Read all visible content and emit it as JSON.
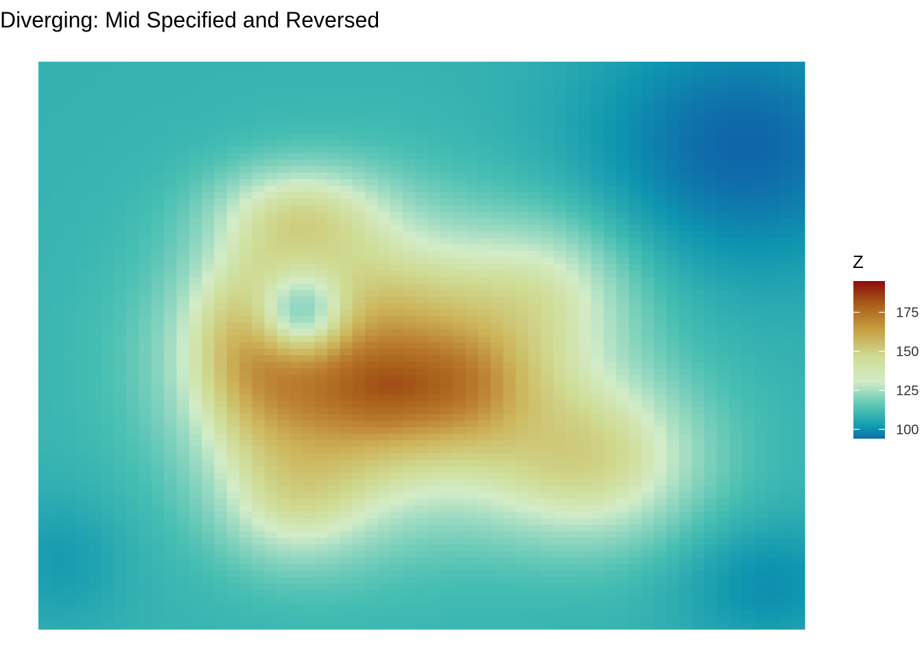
{
  "chart_data": {
    "type": "heatmap",
    "title": "Diverging: Mid Specified and Reversed",
    "xlabel": "",
    "ylabel": "",
    "grid": "off",
    "legend_position": "right",
    "legend": {
      "title": "Z",
      "ticks": [
        100,
        125,
        150,
        175
      ],
      "tick_labels": [
        "100",
        "125",
        "150",
        "175"
      ],
      "range": [
        94,
        195
      ],
      "midpoint": 140
    },
    "colors": {
      "low": "#0f5ea8",
      "mid_low": "#0f9db0",
      "mid_low2": "#5ecab3",
      "mid": "#d3ecc8",
      "mid_high": "#cfdc95",
      "high_mid": "#c69b3b",
      "high": "#a85f1a",
      "top": "#8b0c0c"
    },
    "grid_size": {
      "cols": 61,
      "rows": 87
    },
    "value_field": {
      "background": 118,
      "bumps": [
        {
          "x": 0.4,
          "y": 0.55,
          "amp": 40,
          "sx": 0.14,
          "sy": 0.18
        },
        {
          "x": 0.29,
          "y": 0.49,
          "amp": 22,
          "sx": 0.06,
          "sy": 0.11
        },
        {
          "x": 0.34,
          "y": 0.26,
          "amp": 18,
          "sx": 0.08,
          "sy": 0.06
        },
        {
          "x": 0.45,
          "y": 0.58,
          "amp": 14,
          "sx": 0.06,
          "sy": 0.06
        },
        {
          "x": 0.56,
          "y": 0.57,
          "amp": 18,
          "sx": 0.06,
          "sy": 0.07
        },
        {
          "x": 0.72,
          "y": 0.7,
          "amp": 30,
          "sx": 0.11,
          "sy": 0.11
        },
        {
          "x": 0.67,
          "y": 0.4,
          "amp": 18,
          "sx": 0.09,
          "sy": 0.1
        },
        {
          "x": 0.47,
          "y": 0.5,
          "amp": 12,
          "sx": 0.18,
          "sy": 0.14
        },
        {
          "x": 0.33,
          "y": 0.78,
          "amp": 14,
          "sx": 0.07,
          "sy": 0.08
        },
        {
          "x": 0.34,
          "y": 0.45,
          "amp": -40,
          "sx": 0.045,
          "sy": 0.055
        },
        {
          "x": 0.92,
          "y": 0.15,
          "amp": -22,
          "sx": 0.14,
          "sy": 0.15
        },
        {
          "x": 0.95,
          "y": 0.92,
          "amp": -12,
          "sx": 0.08,
          "sy": 0.08
        },
        {
          "x": 0.03,
          "y": 0.88,
          "amp": -8,
          "sx": 0.06,
          "sy": 0.08
        }
      ]
    }
  }
}
